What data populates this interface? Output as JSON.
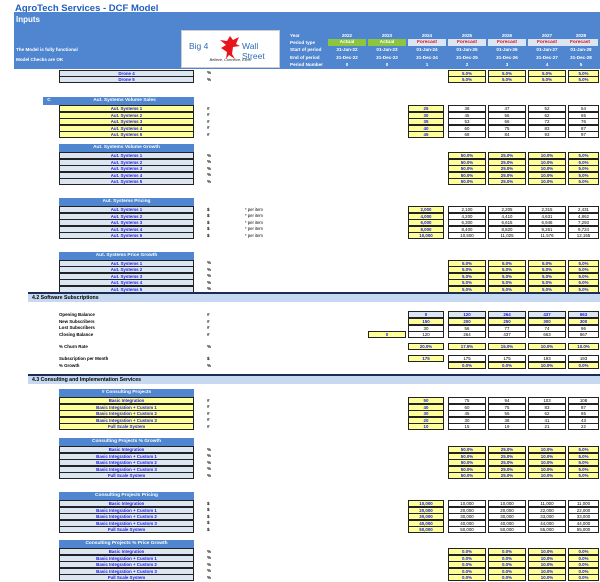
{
  "header": {
    "title": "AgroTech Services - DCF Model",
    "sheet": "Inputs",
    "status_lines": [
      "The Model is fully functional",
      "Model Checks are OK"
    ],
    "logo": {
      "left": "Big 4",
      "right": "Wall Street",
      "tagline": "Believe, Conceive, Excel",
      "icon": "eagle-icon"
    },
    "row_labels": [
      "Year",
      "Period type",
      "Start of period",
      "End of period",
      "Period Number"
    ],
    "columns": [
      {
        "year": "2022",
        "type": "Actual",
        "start": "31-Jan-22",
        "end": "31-Dec-22",
        "num": "0"
      },
      {
        "year": "2023",
        "type": "Actual",
        "start": "01-Jan-23",
        "end": "31-Dec-23",
        "num": "0"
      },
      {
        "year": "2024",
        "type": "Forecast",
        "start": "01-Jan-24",
        "end": "31-Dec-24",
        "num": "1"
      },
      {
        "year": "2025",
        "type": "Forecast",
        "start": "01-Jan-25",
        "end": "31-Dec-25",
        "num": "2"
      },
      {
        "year": "2026",
        "type": "Forecast",
        "start": "01-Jan-26",
        "end": "31-Dec-26",
        "num": "3"
      },
      {
        "year": "2027",
        "type": "Forecast",
        "start": "01-Jan-27",
        "end": "31-Dec-27",
        "num": "4"
      },
      {
        "year": "2028",
        "type": "Forecast",
        "start": "01-Jan-28",
        "end": "31-Dec-28",
        "num": "5"
      }
    ],
    "colors": {
      "banner": "#4f86cf",
      "actual": "#8cc63f",
      "forecast_text": "#e01010",
      "input_fill": "#ffff99",
      "input_text": "#1a1aee"
    }
  },
  "drone_tail": {
    "rows": [
      {
        "label": "Drone 4",
        "unit": "%",
        "values": [
          "5.0%",
          "5.0%",
          "5.0%",
          "5.0%"
        ]
      },
      {
        "label": "Drone 5",
        "unit": "%",
        "values": [
          "5.0%",
          "5.0%",
          "5.0%",
          "5.0%"
        ]
      }
    ]
  },
  "aut_volume": {
    "tag": "C",
    "title": "Aut. Systems Volume Sales",
    "rows": [
      {
        "label": "Aut. Systems 1",
        "unit": "#",
        "input": "25",
        "values": [
          "38",
          "47",
          "52",
          "54"
        ]
      },
      {
        "label": "Aut. Systems 2",
        "unit": "#",
        "input": "30",
        "values": [
          "45",
          "56",
          "62",
          "65"
        ]
      },
      {
        "label": "Aut. Systems 3",
        "unit": "#",
        "input": "35",
        "values": [
          "53",
          "66",
          "72",
          "76"
        ]
      },
      {
        "label": "Aut. Systems 4",
        "unit": "#",
        "input": "40",
        "values": [
          "60",
          "75",
          "83",
          "87"
        ]
      },
      {
        "label": "Aut. Systems 5",
        "unit": "#",
        "input": "45",
        "values": [
          "68",
          "84",
          "93",
          "97"
        ]
      }
    ]
  },
  "aut_volume_growth": {
    "title": "Aut. Systems Volume Growth",
    "rows": [
      {
        "label": "Aut. Systems 1",
        "unit": "%",
        "values": [
          "50.0%",
          "25.0%",
          "10.0%",
          "5.0%"
        ]
      },
      {
        "label": "Aut. Systems 2",
        "unit": "%",
        "values": [
          "50.0%",
          "25.0%",
          "10.0%",
          "5.0%"
        ]
      },
      {
        "label": "Aut. Systems 3",
        "unit": "%",
        "values": [
          "50.0%",
          "25.0%",
          "10.0%",
          "5.0%"
        ]
      },
      {
        "label": "Aut. Systems 4",
        "unit": "%",
        "values": [
          "50.0%",
          "25.0%",
          "10.0%",
          "5.0%"
        ]
      },
      {
        "label": "Aut. Systems 5",
        "unit": "%",
        "values": [
          "50.0%",
          "25.0%",
          "10.0%",
          "5.0%"
        ]
      }
    ]
  },
  "aut_pricing": {
    "title": "Aut. Systems Pricing",
    "rows": [
      {
        "label": "Aut. Systems 1",
        "unit": "$",
        "note": "* per item",
        "input": "2,000",
        "values": [
          "2,100",
          "2,205",
          "2,315",
          "2,431"
        ]
      },
      {
        "label": "Aut. Systems 2",
        "unit": "$",
        "note": "* per item",
        "input": "4,000",
        "values": [
          "4,200",
          "4,410",
          "4,631",
          "4,862"
        ]
      },
      {
        "label": "Aut. Systems 3",
        "unit": "$",
        "note": "* per item",
        "input": "6,000",
        "values": [
          "6,300",
          "6,615",
          "6,946",
          "7,293"
        ]
      },
      {
        "label": "Aut. Systems 4",
        "unit": "$",
        "note": "* per item",
        "input": "8,000",
        "values": [
          "8,400",
          "8,820",
          "9,261",
          "9,724"
        ]
      },
      {
        "label": "Aut. Systems 5",
        "unit": "$",
        "note": "* per item",
        "input": "10,000",
        "values": [
          "10,500",
          "11,025",
          "11,576",
          "12,155"
        ]
      }
    ]
  },
  "aut_price_growth": {
    "title": "Aut. Systems Price Growth",
    "rows": [
      {
        "label": "Aut. Systems 1",
        "unit": "%",
        "values": [
          "5.0%",
          "5.0%",
          "5.0%",
          "5.0%"
        ]
      },
      {
        "label": "Aut. Systems 2",
        "unit": "%",
        "values": [
          "5.0%",
          "5.0%",
          "5.0%",
          "5.0%"
        ]
      },
      {
        "label": "Aut. Systems 3",
        "unit": "%",
        "values": [
          "5.0%",
          "5.0%",
          "5.0%",
          "5.0%"
        ]
      },
      {
        "label": "Aut. Systems 4",
        "unit": "%",
        "values": [
          "5.0%",
          "5.0%",
          "5.0%",
          "5.0%"
        ]
      },
      {
        "label": "Aut. Systems 5",
        "unit": "%",
        "values": [
          "5.0%",
          "5.0%",
          "5.0%",
          "5.0%"
        ]
      }
    ]
  },
  "software": {
    "section": "4.2   Software Subscriptions",
    "rows": [
      {
        "label": "Opening Balance",
        "unit": "#",
        "values": [
          "0",
          "120",
          "264",
          "437",
          "663"
        ]
      },
      {
        "label": "New Subscribers",
        "unit": "#",
        "values": [
          "150",
          "200",
          "250",
          "300",
          "300"
        ]
      },
      {
        "label": "Lost Subscribers",
        "unit": "#",
        "values": [
          "30",
          "56",
          "77",
          "74",
          "96"
        ]
      },
      {
        "label": "Closing Balance",
        "unit": "#",
        "prior": "0",
        "values": [
          "120",
          "264",
          "437",
          "663",
          "867"
        ]
      }
    ],
    "churn": {
      "label": "% Churn Rate",
      "unit": "%",
      "values": [
        "20.0%",
        "17.5%",
        "15.0%",
        "10.0%",
        "10.0%"
      ]
    },
    "sub_price": {
      "label": "Subscription per Month",
      "unit": "$",
      "values": [
        "175",
        "175",
        "175",
        "193",
        "193"
      ]
    },
    "growth": {
      "label": "% Growth",
      "unit": "%",
      "values": [
        "0.0%",
        "0.0%",
        "10.0%",
        "0.0%"
      ]
    }
  },
  "consulting": {
    "section": "4.3   Consulting and Implementation Services",
    "projects": {
      "title": "# Consulting Projects",
      "rows": [
        {
          "label": "Basic Integration",
          "unit": "#",
          "input": "50",
          "values": [
            "75",
            "94",
            "103",
            "108"
          ]
        },
        {
          "label": "Basic Integration + Custom 1",
          "unit": "#",
          "input": "40",
          "values": [
            "60",
            "75",
            "83",
            "87"
          ]
        },
        {
          "label": "Basic Integration + Custom 2",
          "unit": "#",
          "input": "30",
          "values": [
            "45",
            "56",
            "62",
            "65"
          ]
        },
        {
          "label": "Basic Integration + Custom 3",
          "unit": "#",
          "input": "20",
          "values": [
            "30",
            "38",
            "41",
            "43"
          ]
        },
        {
          "label": "Full Scale System",
          "unit": "#",
          "input": "10",
          "values": [
            "15",
            "19",
            "21",
            "22"
          ]
        }
      ]
    },
    "growth": {
      "title": "Consulting Projects % Growth",
      "rows": [
        {
          "label": "Basic Integration",
          "unit": "%",
          "values": [
            "50.0%",
            "25.0%",
            "10.0%",
            "5.0%"
          ]
        },
        {
          "label": "Basic Integration + Custom 1",
          "unit": "%",
          "values": [
            "50.0%",
            "25.0%",
            "10.0%",
            "5.0%"
          ]
        },
        {
          "label": "Basic Integration + Custom 2",
          "unit": "%",
          "values": [
            "50.0%",
            "25.0%",
            "10.0%",
            "5.0%"
          ]
        },
        {
          "label": "Basic Integration + Custom 3",
          "unit": "%",
          "values": [
            "50.0%",
            "25.0%",
            "10.0%",
            "5.0%"
          ]
        },
        {
          "label": "Full Scale System",
          "unit": "%",
          "values": [
            "50.0%",
            "25.0%",
            "10.0%",
            "5.0%"
          ]
        }
      ]
    },
    "pricing": {
      "title": "Consulting Projects Pricing",
      "rows": [
        {
          "label": "Basic Integration",
          "unit": "$",
          "input": "10,000",
          "values": [
            "10,000",
            "10,000",
            "11,000",
            "11,000"
          ]
        },
        {
          "label": "Basic Integration + Custom 1",
          "unit": "$",
          "input": "20,000",
          "values": [
            "20,000",
            "20,000",
            "22,000",
            "22,000"
          ]
        },
        {
          "label": "Basic Integration + Custom 2",
          "unit": "$",
          "input": "30,000",
          "values": [
            "30,000",
            "30,000",
            "33,000",
            "33,000"
          ]
        },
        {
          "label": "Basic Integration + Custom 3",
          "unit": "$",
          "input": "40,000",
          "values": [
            "40,000",
            "40,000",
            "44,000",
            "44,000"
          ]
        },
        {
          "label": "Full Scale System",
          "unit": "$",
          "input": "50,000",
          "values": [
            "50,000",
            "50,000",
            "55,000",
            "55,000"
          ]
        }
      ]
    },
    "price_growth": {
      "title": "Consulting Projects % Price Growth",
      "rows": [
        {
          "label": "Basic Integration",
          "unit": "%",
          "values": [
            "0.0%",
            "0.0%",
            "10.0%",
            "0.0%"
          ]
        },
        {
          "label": "Basic Integration + Custom 1",
          "unit": "%",
          "values": [
            "0.0%",
            "0.0%",
            "10.0%",
            "0.0%"
          ]
        },
        {
          "label": "Basic Integration + Custom 2",
          "unit": "%",
          "values": [
            "0.0%",
            "0.0%",
            "10.0%",
            "0.0%"
          ]
        },
        {
          "label": "Basic Integration + Custom 3",
          "unit": "%",
          "values": [
            "0.0%",
            "0.0%",
            "10.0%",
            "0.0%"
          ]
        },
        {
          "label": "Full Scale System",
          "unit": "%",
          "values": [
            "0.0%",
            "0.0%",
            "10.0%",
            "0.0%"
          ]
        }
      ]
    }
  }
}
